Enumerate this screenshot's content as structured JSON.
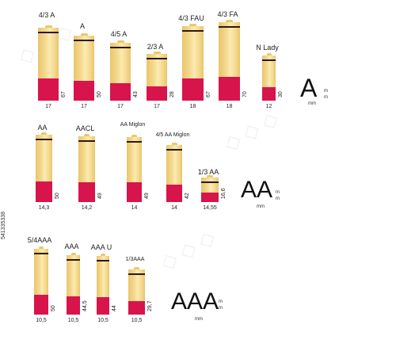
{
  "colors": {
    "body": "#f4d98e",
    "body_edge": "#e9c56c",
    "band": "#d7144b",
    "cap": "#e8c870",
    "stripe": "#2a1a12"
  },
  "groups": [
    {
      "id": "A",
      "label": "A",
      "units": {
        "mm": "mm",
        "m1": "m",
        "m2": "m"
      },
      "cells": [
        {
          "name": "4/3 A",
          "diameter": "17",
          "length": "67"
        },
        {
          "name": "A",
          "diameter": "17",
          "length": "50"
        },
        {
          "name": "4/5 A",
          "diameter": "17",
          "length": "43"
        },
        {
          "name": "2/3 A",
          "diameter": "17",
          "length": "28"
        },
        {
          "name": "4/3 FAU",
          "diameter": "18",
          "length": "67"
        },
        {
          "name": "4/3 FA",
          "diameter": "18",
          "length": "70"
        },
        {
          "name": "N Lady",
          "diameter": "12",
          "length": "30"
        }
      ]
    },
    {
      "id": "AA",
      "label": "AA",
      "units": {
        "mm": "mm",
        "m1": "m",
        "m2": "m"
      },
      "cells": [
        {
          "name": "AA",
          "diameter": "14,3",
          "length": "50"
        },
        {
          "name": "AACL",
          "diameter": "14,2",
          "length": "49"
        },
        {
          "name": "AA Miglon",
          "diameter": "14",
          "length": "49"
        },
        {
          "name": "4/5 AA Miglon",
          "diameter": "14",
          "length": "42"
        },
        {
          "name": "1/3 AA",
          "diameter": "14,55",
          "length": "16,6"
        }
      ]
    },
    {
      "id": "AAA",
      "label": "AAA",
      "units": {
        "mm": "mm",
        "m1": "m",
        "m2": "m"
      },
      "cells": [
        {
          "name": "5/4AAA",
          "diameter": "10,5",
          "length": "50"
        },
        {
          "name": "AAA",
          "diameter": "10,5",
          "length": "44,5"
        },
        {
          "name": "AAA U",
          "diameter": "10,5",
          "length": "44"
        },
        {
          "name": "1/3AAA",
          "diameter": "10,5",
          "length": "29,7"
        }
      ]
    }
  ],
  "credit": "541335338"
}
